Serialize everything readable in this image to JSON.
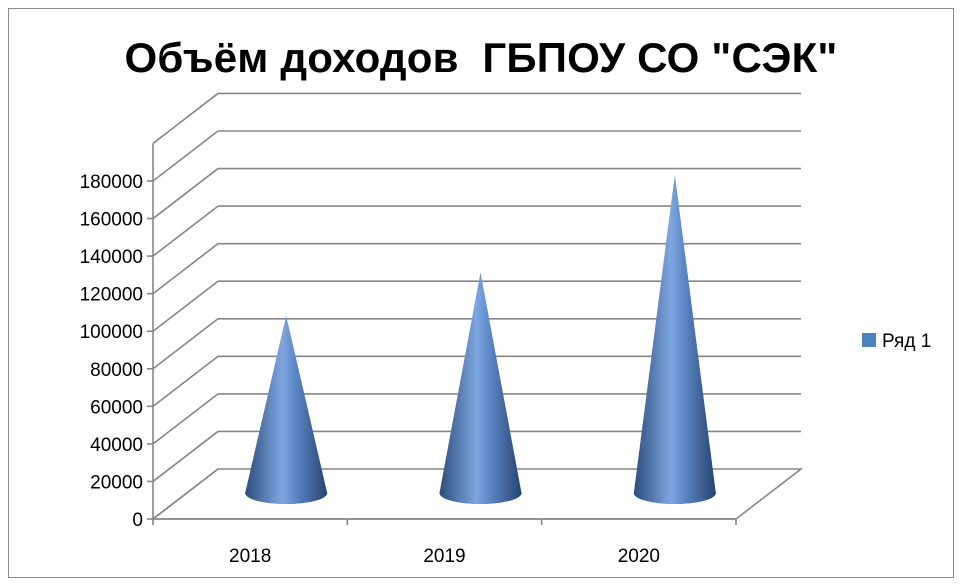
{
  "chart_data": {
    "type": "bar",
    "subtype": "3d-cone",
    "title": "Объём доходов  ГБПОУ СО \"СЭК\"",
    "categories": [
      "2018",
      "2019",
      "2020"
    ],
    "series": [
      {
        "name": "Ряд 1",
        "values": [
          95000,
          118000,
          170000
        ],
        "color": "#4f81bd"
      }
    ],
    "yticks": [
      "0",
      "20000",
      "40000",
      "60000",
      "80000",
      "100000",
      "120000",
      "140000",
      "160000",
      "180000"
    ],
    "ylim": [
      0,
      180000
    ],
    "grid": true,
    "legend": "right"
  }
}
